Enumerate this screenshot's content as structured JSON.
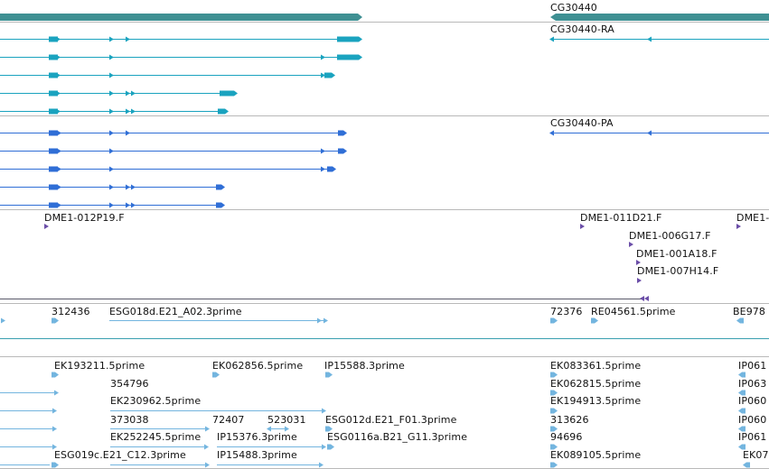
{
  "colors": {
    "gene_bar": "#3f9093",
    "transcript_cyan": "#1aa3bf",
    "transcript_blue": "#2f6ed6",
    "primer_purple": "#6b4ea8",
    "est_lightblue": "#73b5df",
    "divider": "#b9b9b9"
  },
  "gene_track": {
    "gene_label": "CG30440",
    "transcript_ra_label": "CG30440-RA",
    "protein_pa_label": "CG30440-PA"
  },
  "primer_track": {
    "labels": [
      "DME1-012P19.F",
      "DME1-011D21.F",
      "DME1-",
      "DME1-006G17.F",
      "DME1-001A18.F",
      "DME1-007H14.F"
    ]
  },
  "est_track": {
    "labels": [
      "312436",
      "ESG018d.E21_A02.3prime",
      "72376",
      "RE04561.5prime",
      "BE978",
      "EK193211.5prime",
      "EK062856.5prime",
      "IP15588.3prime",
      "EK083361.5prime",
      "IP061",
      "354796",
      "EK062815.5prime",
      "IP063",
      "EK230962.5prime",
      "EK194913.5prime",
      "IP060",
      "373038",
      "72407",
      "523031",
      "ESG012d.E21_F01.3prime",
      "313626",
      "IP060",
      "EK252245.5prime",
      "IP15376.3prime",
      "ESG0116a.B21_G11.3prime",
      "94696",
      "IP061",
      "ESG019c.E21_C12.3prime",
      "IP15488.3prime",
      "EK089105.5prime",
      "EK07"
    ]
  }
}
